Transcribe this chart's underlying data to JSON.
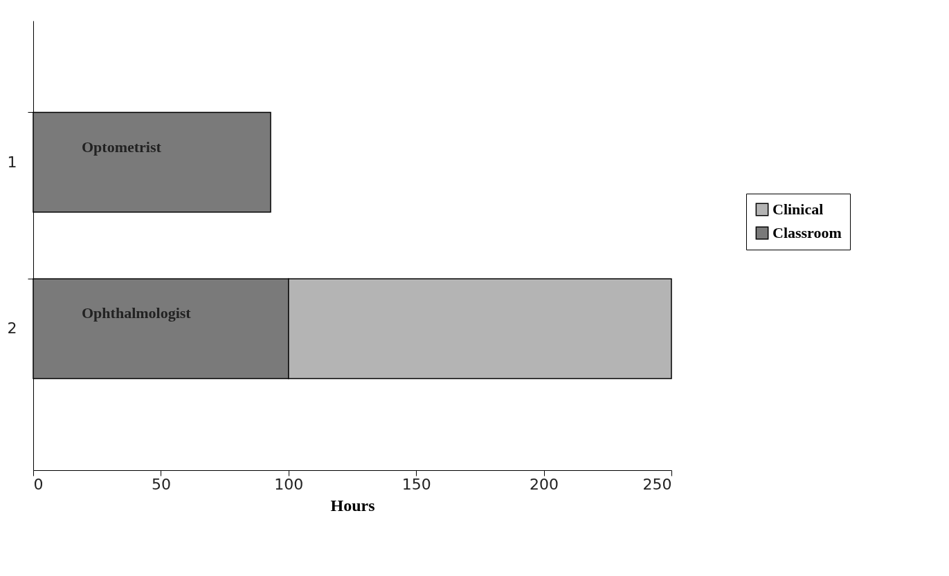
{
  "chart_data": {
    "type": "bar",
    "orientation": "horizontal",
    "stacked": true,
    "categories": [
      "1",
      "2"
    ],
    "series": [
      {
        "name": "Classroom",
        "color": "#7a7a7a",
        "values": [
          93,
          100
        ]
      },
      {
        "name": "Clinical",
        "color": "#b4b4b4",
        "values": [
          null,
          150
        ]
      }
    ],
    "xlabel": "Hours",
    "xlim": [
      0,
      250
    ],
    "xticks": [
      0,
      50,
      100,
      150,
      200,
      250
    ],
    "grid": false,
    "legend": "right",
    "annotations": [
      "Optometrist",
      "Ophthalmologist"
    ]
  }
}
